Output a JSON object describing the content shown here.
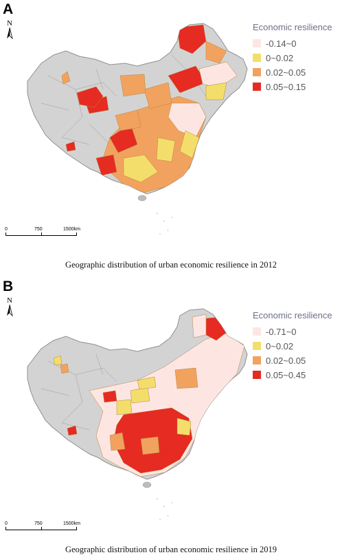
{
  "colors": {
    "gray": "#d3d3d3",
    "border_gray": "#9a9a9a",
    "pale_pink": "#fde6e2",
    "yellow": "#f3de6c",
    "orange": "#f2a25f",
    "red": "#e52b22",
    "city_border": "#b8833d",
    "special_gray": "#bdbdbd"
  },
  "panel_a": {
    "letter": "A",
    "north_label": "N",
    "legend_title": "Economic resilience",
    "legend": [
      {
        "label": "-0.14~0",
        "color": "#fde6e2"
      },
      {
        "label": "0~0.02",
        "color": "#f3de6c"
      },
      {
        "label": "0.02~0.05",
        "color": "#f2a25f"
      },
      {
        "label": "0.05~0.15",
        "color": "#e52b22"
      }
    ],
    "scale": {
      "labels": [
        "0",
        "750",
        "1500km"
      ]
    },
    "caption": "Geographic distribution  of urban economic resilience in 2012"
  },
  "panel_b": {
    "letter": "B",
    "north_label": "N",
    "legend_title": "Economic resilience",
    "legend": [
      {
        "label": "-0.71~0",
        "color": "#fde6e2"
      },
      {
        "label": "0~0.02",
        "color": "#f3de6c"
      },
      {
        "label": "0.02~0.05",
        "color": "#f2a25f"
      },
      {
        "label": "0.05~0.45",
        "color": "#e52b22"
      }
    ],
    "scale": {
      "labels": [
        "0",
        "750",
        "1500km"
      ]
    },
    "caption": "Geographic distribution  of urban economic resilience in 2019"
  }
}
